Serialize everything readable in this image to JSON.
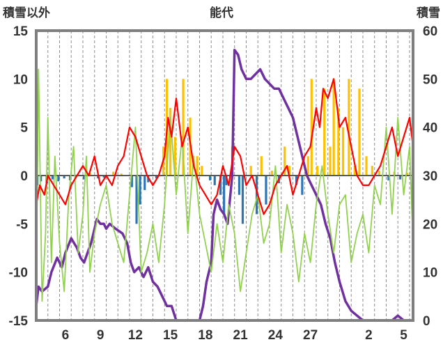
{
  "header": {
    "left_label": "積雪以外",
    "title": "能代",
    "right_label": "積雪"
  },
  "chart_data": {
    "type": "line",
    "title": "能代",
    "left_axis": {
      "label": "積雪以外",
      "ylim": [
        -15,
        15
      ],
      "ticks": [
        15,
        10,
        5,
        0,
        -5,
        -10,
        -15
      ]
    },
    "right_axis": {
      "label": "積雪",
      "ylim": [
        0,
        60
      ],
      "ticks": [
        60,
        50,
        40,
        30,
        20,
        10,
        0
      ]
    },
    "x_axis": {
      "ticks": [
        "6",
        "9",
        "12",
        "15",
        "18",
        "21",
        "24",
        "27",
        "2",
        "5"
      ],
      "xlim": [
        4,
        36.3
      ]
    },
    "grid": {
      "vertical": "dashed, one per day",
      "horizontal": "none"
    },
    "series": [
      {
        "axis": "right",
        "color": "#7030a0",
        "x": [
          4.0,
          4.2,
          4.5,
          5.0,
          5.3,
          5.8,
          6.2,
          6.5,
          7.0,
          7.5,
          7.8,
          8.1,
          8.4,
          8.7,
          8.9,
          9.2,
          9.5,
          9.8,
          10.0,
          10.3,
          10.8,
          11.4,
          11.8,
          12.1,
          12.4,
          12.8,
          13.2,
          13.6,
          14.0,
          14.4,
          14.8,
          15.2,
          15.6,
          16.0,
          16.5,
          17.0,
          17.5,
          18.0,
          18.3,
          18.6,
          19.0,
          19.2,
          19.5,
          19.8,
          20.1,
          20.4,
          20.8,
          21.0,
          21.3,
          21.6,
          22.0,
          22.4,
          22.8,
          23.2,
          23.6,
          24.0,
          24.4,
          24.8,
          25.2,
          25.6,
          26.0,
          26.4,
          26.8,
          27.2,
          27.6,
          28.0,
          28.4,
          28.8,
          29.2,
          29.6,
          30.0,
          30.5,
          31.0,
          31.5,
          32.0,
          32.5,
          33.0,
          34.0,
          34.5,
          35.0,
          35.5,
          36.0,
          36.3
        ],
        "y": [
          3,
          7,
          6,
          7,
          10,
          13,
          11,
          14,
          17,
          15,
          13,
          12,
          14,
          16,
          18,
          21,
          20,
          20,
          19,
          20,
          19,
          18,
          16,
          12,
          10,
          11,
          9,
          11,
          8,
          7,
          5,
          3,
          3,
          0,
          0,
          0,
          0,
          0,
          3,
          8,
          12,
          22,
          25,
          23,
          22,
          20,
          30,
          56,
          55,
          52,
          50,
          50,
          51,
          52,
          50,
          49,
          48,
          48,
          46,
          44,
          42,
          38,
          34,
          30,
          28,
          26,
          24,
          20,
          17,
          12,
          8,
          4,
          2,
          1,
          0,
          0,
          0,
          0,
          0,
          1,
          0,
          0,
          0
        ],
        "width": 3.5
      },
      {
        "axis": "left",
        "color": "#92d050",
        "x": [
          4.0,
          4.2,
          4.5,
          4.8,
          5.0,
          5.3,
          5.6,
          6.0,
          6.4,
          6.8,
          7.2,
          7.6,
          8.0,
          8.3,
          8.6,
          9.0,
          9.5,
          10.0,
          10.5,
          11.0,
          11.5,
          12.0,
          12.5,
          13.0,
          13.5,
          14.0,
          14.5,
          15.0,
          15.5,
          16.0,
          16.5,
          17.0,
          17.5,
          18.0,
          18.5,
          19.0,
          19.5,
          20.0,
          20.5,
          21.0,
          21.5,
          22.0,
          22.5,
          23.0,
          23.5,
          24.0,
          24.5,
          25.0,
          25.5,
          26.0,
          26.5,
          27.0,
          27.5,
          28.0,
          28.5,
          29.0,
          29.5,
          30.0,
          30.5,
          31.0,
          31.5,
          32.0,
          32.5,
          33.0,
          33.5,
          34.0,
          34.5,
          35.0,
          35.5,
          36.0,
          36.3
        ],
        "y": [
          -11,
          11,
          -13,
          -6,
          6,
          -9,
          2,
          -7,
          -12,
          -2,
          3,
          -8,
          -4,
          2,
          -10,
          -6,
          -3,
          -1,
          -5,
          -7,
          -9,
          -2,
          5,
          -10,
          -8,
          -5,
          -9,
          -3,
          6,
          -2,
          4,
          -6,
          2,
          -4,
          -7,
          -10,
          -5,
          -9,
          -3,
          -6,
          -12,
          -8,
          -4,
          -2,
          -7,
          -5,
          1,
          -8,
          -3,
          -6,
          -11,
          -6,
          -9,
          -3,
          1,
          -4,
          -8,
          -3,
          -2,
          -9,
          -6,
          -4,
          -8,
          -1,
          -3,
          5,
          -4,
          6,
          -2,
          3,
          -7
        ],
        "width": 1.8
      },
      {
        "axis": "left",
        "color": "#ff0000",
        "x": [
          4.0,
          4.3,
          4.7,
          5.0,
          5.5,
          6.0,
          6.5,
          7.0,
          7.5,
          8.0,
          8.5,
          9.0,
          9.5,
          10.0,
          10.5,
          11.0,
          11.5,
          12.0,
          12.5,
          13.0,
          13.5,
          14.0,
          14.5,
          15.0,
          15.3,
          15.6,
          16.0,
          16.5,
          17.0,
          17.5,
          18.0,
          18.5,
          19.0,
          19.5,
          20.0,
          20.5,
          21.0,
          21.5,
          22.0,
          22.5,
          23.0,
          23.5,
          24.0,
          24.5,
          25.0,
          25.5,
          26.0,
          26.5,
          27.0,
          27.5,
          28.0,
          28.3,
          28.6,
          29.0,
          29.5,
          30.0,
          30.5,
          31.0,
          31.5,
          32.0,
          32.5,
          33.0,
          33.5,
          34.0,
          34.5,
          35.0,
          35.5,
          36.0,
          36.3
        ],
        "y": [
          -3,
          -1,
          -2,
          0,
          -1,
          -2,
          -3,
          -1,
          0,
          1,
          0,
          2,
          -1,
          0,
          -1,
          1,
          2,
          5,
          4,
          2,
          0,
          -1,
          0,
          2,
          6,
          4,
          8,
          3,
          5,
          1,
          -1,
          -2,
          -3,
          -2,
          1,
          -1,
          3,
          2,
          -1,
          0,
          -2,
          -4,
          -3,
          -1,
          0,
          1,
          -2,
          0,
          2,
          3,
          7,
          5,
          9,
          8,
          10,
          5,
          6,
          3,
          0,
          -1,
          -1,
          0,
          1,
          3,
          5,
          2,
          4,
          6,
          3
        ],
        "width": 2.2
      }
    ],
    "bars": {
      "axis": "left",
      "positive_color": "#ffc000",
      "negative_color": "#2e75b6",
      "x": [
        4.1,
        4.4,
        4.9,
        5.4,
        5.9,
        6.4,
        6.9,
        7.4,
        8.1,
        8.6,
        9.3,
        9.8,
        10.6,
        11.3,
        12.2,
        12.6,
        12.9,
        13.3,
        13.6,
        14.3,
        14.9,
        15.2,
        15.5,
        15.9,
        16.6,
        17.2,
        17.8,
        18.2,
        18.9,
        19.3,
        19.8,
        20.1,
        20.3,
        20.8,
        21.4,
        21.7,
        22.4,
        22.9,
        23.3,
        23.7,
        24.2,
        24.8,
        25.3,
        25.7,
        26.3,
        26.8,
        27.3,
        27.6,
        28.1,
        28.7,
        29.2,
        29.5,
        29.9,
        30.3,
        30.8,
        31.3,
        31.7,
        32.3,
        32.8,
        33.4,
        34.2,
        34.7,
        35.2,
        35.8
      ],
      "values": [
        -1.0,
        -0.6,
        -0.8,
        -0.4,
        -0.6,
        -0.3,
        -0.5,
        -0.2,
        -0.4,
        0.3,
        -0.3,
        -0.2,
        0.4,
        0.2,
        -1.2,
        -5.0,
        -3.0,
        -1.5,
        -0.7,
        -0.3,
        3.0,
        10.0,
        7.0,
        4.0,
        10.0,
        6.0,
        2.0,
        1.0,
        -0.5,
        -1.0,
        -2.0,
        -4.0,
        -1.0,
        3.0,
        -2.0,
        -5.0,
        1.0,
        -4.0,
        2.0,
        -3.0,
        0.5,
        -0.8,
        3.0,
        1.0,
        -1.0,
        -2.0,
        2.0,
        10.0,
        1.0,
        9.0,
        3.0,
        10.0,
        7.0,
        5.0,
        10.0,
        1.0,
        9.0,
        2.0,
        1.0,
        0.5,
        -0.5,
        0.4,
        -0.4,
        0.3
      ]
    }
  }
}
